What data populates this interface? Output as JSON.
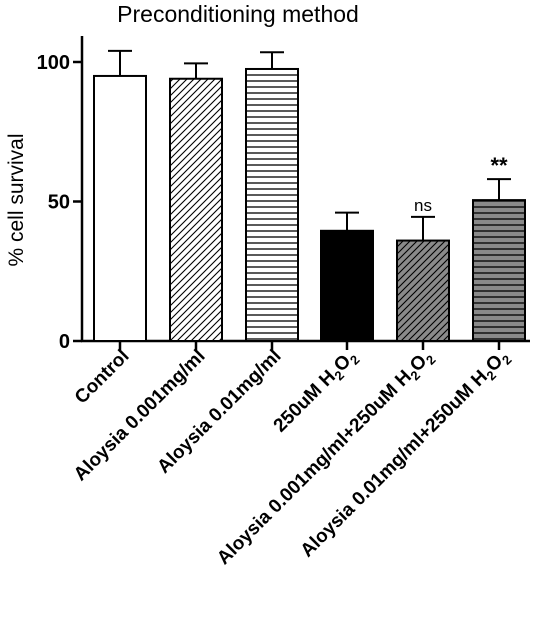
{
  "chart_data": {
    "type": "bar",
    "title": "Preconditioning method",
    "xlabel": "",
    "ylabel": "% cell survival",
    "ylim": [
      0,
      100
    ],
    "yticks": [
      "0",
      "50",
      "100"
    ],
    "grid": false,
    "categories": [
      "Control",
      "Aloysia 0.001mg/ml",
      "Aloysia 0.01mg/ml",
      "250uM H2O2",
      "Aloysia 0.001mg/ml+250uM H2O2",
      "Aloysia 0.01mg/ml+250uM H2O2"
    ],
    "values": [
      95,
      94,
      97.5,
      39.5,
      36,
      50.5
    ],
    "errors": [
      9,
      5.5,
      6,
      6.5,
      8.5,
      7.5
    ],
    "annotations": [
      "",
      "",
      "",
      "",
      "ns",
      "**"
    ],
    "fills": [
      "white",
      "diagonal",
      "horizontal",
      "black",
      "gray-diagonal",
      "gray-horizontal"
    ]
  }
}
